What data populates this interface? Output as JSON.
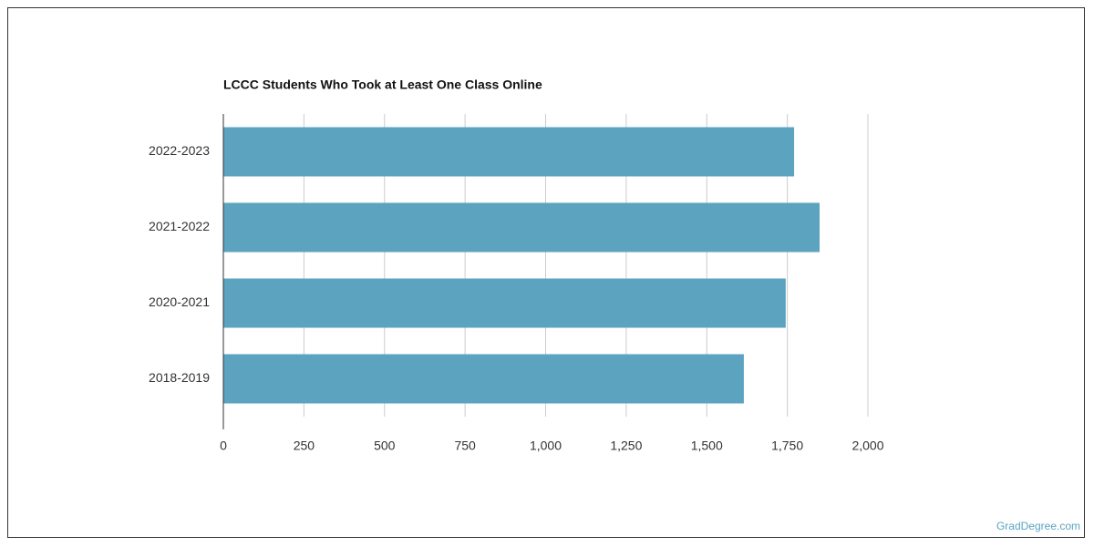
{
  "chart_data": {
    "type": "bar",
    "orientation": "horizontal",
    "title": "LCCC Students Who Took at Least One Class Online",
    "categories": [
      "2022-2023",
      "2021-2022",
      "2020-2021",
      "2018-2019"
    ],
    "values": [
      1771,
      1850,
      1745,
      1615
    ],
    "color": "#5ba3bf",
    "xlim": [
      0,
      2000
    ],
    "xticks": [
      0,
      250,
      500,
      750,
      {
        "value": 1000,
        "label": "1,000"
      },
      {
        "value": 1250,
        "label": "1,250"
      },
      {
        "value": 1500,
        "label": "1,500"
      },
      {
        "value": 1750,
        "label": "1,750"
      },
      {
        "value": 2000,
        "label": "2,000"
      }
    ],
    "grid": true,
    "source": "GradDegree.com"
  }
}
